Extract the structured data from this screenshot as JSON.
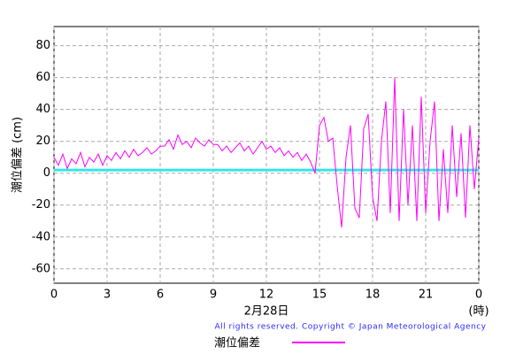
{
  "chart_data": {
    "type": "line",
    "y_label": "潮位偏差 (cm)",
    "x_label": "2月28日",
    "x_unit": "(時)",
    "copyright": "All rights reserved. Copyright © Japan Meteorological Agency",
    "xlim": [
      0,
      24
    ],
    "xticks": [
      0,
      3,
      6,
      9,
      12,
      15,
      18,
      21,
      {
        "value": 24,
        "label": "0"
      }
    ],
    "ylim": [
      -69,
      92
    ],
    "yticks": [
      -60,
      -40,
      -20,
      0,
      20,
      40,
      60,
      80
    ],
    "grid": true,
    "baseline": {
      "value": 2,
      "color": "#33e6e6"
    },
    "x": [
      0,
      0.25,
      0.5,
      0.75,
      1,
      1.25,
      1.5,
      1.75,
      2,
      2.25,
      2.5,
      2.75,
      3,
      3.25,
      3.5,
      3.75,
      4,
      4.25,
      4.5,
      4.75,
      5,
      5.25,
      5.5,
      5.75,
      6,
      6.25,
      6.5,
      6.75,
      7,
      7.25,
      7.5,
      7.75,
      8,
      8.25,
      8.5,
      8.75,
      9,
      9.25,
      9.5,
      9.75,
      10,
      10.25,
      10.5,
      10.75,
      11,
      11.25,
      11.5,
      11.75,
      12,
      12.25,
      12.5,
      12.75,
      13,
      13.25,
      13.5,
      13.75,
      14,
      14.25,
      14.5,
      14.75,
      15,
      15.25,
      15.5,
      15.75,
      16,
      16.25,
      16.5,
      16.75,
      17,
      17.25,
      17.5,
      17.75,
      18,
      18.25,
      18.5,
      18.75,
      19,
      19.25,
      19.5,
      19.75,
      20,
      20.25,
      20.5,
      20.75,
      21,
      21.25,
      21.5,
      21.75,
      22,
      22.25,
      22.5,
      22.75,
      23,
      23.25,
      23.5,
      23.75,
      24
    ],
    "series": [
      {
        "name": "潮位偏差",
        "color": "#ff00ff",
        "values": [
          10,
          5,
          12,
          3,
          9,
          6,
          13,
          4,
          10,
          7,
          12,
          5,
          11,
          8,
          13,
          9,
          14,
          10,
          15,
          11,
          13,
          16,
          12,
          14,
          17,
          17,
          21,
          15,
          24,
          18,
          20,
          16,
          22,
          19,
          17,
          21,
          18,
          18,
          14,
          17,
          13,
          16,
          19,
          14,
          17,
          12,
          16,
          20,
          15,
          17,
          13,
          16,
          11,
          14,
          10,
          13,
          8,
          12,
          7,
          0,
          30,
          35,
          20,
          22,
          -8,
          -34,
          10,
          30,
          -22,
          -28,
          28,
          37,
          -15,
          -30,
          20,
          45,
          -25,
          60,
          -30,
          40,
          -20,
          30,
          -30,
          48,
          -25,
          20,
          45,
          -30,
          15,
          -25,
          30,
          -15,
          25,
          -28,
          30,
          -10,
          22
        ]
      }
    ]
  }
}
